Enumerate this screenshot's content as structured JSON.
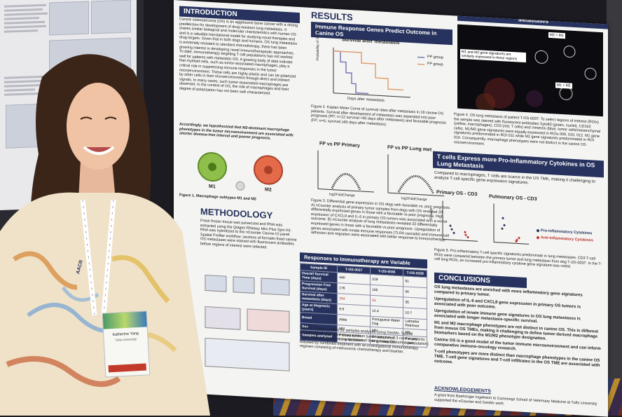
{
  "poster": {
    "intro_title": "INTRODUCTION",
    "intro_text": "Canine osteosarcoma (OS) is an aggressive bone cancer with a strong predilection for development of drug-resistant lung metastasis. It shares similar biological and molecular characteristics with human OS and is a valuable translational model for studying novel therapies and drug targets. Given that in both dogs and humans, OS lung metastasis is extremely resistant to standard chemotherapy, there has been growing interest in developing novel immunotherapeutic approaches. To date, immunotherapy targeting T cell populations has not worked well for patients with metastatic OS. A growing body of data indicate that myeloid cells, such as tumor-associated macrophages, play a critical role in suppressing immune responses in the tumor microenvironment. These cells are highly plastic and can be polarized by other cells in their microenvironment through direct and indirect signals. In many cases, such tumor-associated macrophages are observed. In the context of OS, the role of macrophages and their degree of polarization has not been well characterized.",
    "intro_hypothesis": "Accordingly, we hypothesized that M2-dominant macrophage phenotypes in the tumor microenvironment are associated with shorter disease-free interval and poorer prognosis.",
    "fig1_caption": "Figure 1. Macrophage subtypes M1 and M2",
    "fig1_m1": "M1",
    "fig1_m2": "M2",
    "methods_title": "METHODOLOGY",
    "methods_text": "Fresh frozen tissue was pulverized and RNA was extracted using the Qiagen RNeasy Mini Plus Spin Kit. RNA was hybridized to the nCounter Canine IO panel. Spatial Profiler workflow: sections of formalin-fixed canine OS metastases were stained with fluorescent antibodies before regions of interest were selected.",
    "results_title": "RESULTS",
    "km_header": "Immune Response Genes Predict Outcome in Canine OS",
    "km_title": "Survival after metastasis",
    "km_ylabel": "Probability of Survival",
    "km_xlabel": "Days after metastasis",
    "km_legend": [
      "PP group",
      "FP group"
    ],
    "fig2_caption": "Figure 2. Kaplan Meier Curve of survival rates after metastasis in 18 canine OS patients. Survival after development of metastasis was separated into poor prognosis (PP; n=12 survival <60 days after metastasis) and favorable prognosis (FP; n=6, survival ≥60 days after metastasis).",
    "volcano1_title": "FP vs PP Primary",
    "volcano2_title": "FP vs PP Lung met",
    "volcano_xlabel": "log2FoldChange",
    "fig3_caption": "Figure 3. Differential gene expression in OS dogs with favorable vs. poor prognosis. A) nCounter analysis of primary tumor samples from dogs with OS revealed 20 differentially expressed genes in those with a favorable vs poor prognosis. High expression of CXCL8 and IL-6 in primary OS tumors was associated with a worse outcome. B) nCounter analysis of lung metastases revealed 33 differentially expressed genes in those with a favorable vs poor prognosis. Upregulation of genes associated with innate immune responses (TLR4 cascade) and immune cell adhesion and migration were associated with better response to immunotherapy.",
    "table_header": "Responses to Immunotherapy are Variable",
    "table_cols": [
      "Sample ID",
      "T-OS-0037",
      "T-OS-0036",
      "T-OS-0028"
    ],
    "table_rows": [
      [
        "Overall Survival Time (days)",
        "440",
        "219",
        "91"
      ],
      [
        "Progression Free Survival (days)",
        "176",
        "165",
        "56"
      ],
      [
        "Survival after metastasis (days)",
        "264",
        "54",
        "35"
      ],
      [
        "Age at diagnosis (years)",
        "9.9",
        "12.4",
        "10.7"
      ],
      [
        "Breed",
        "Akita",
        "Portuguese Water Dog",
        "Labrador Retriever"
      ],
      [
        "Sex",
        "MN",
        "MN",
        "MN"
      ],
      [
        "Samples analyzed",
        "Primary tumor, Lung metastasis",
        "Primary tumor, lung metastasis",
        "Primary tumor"
      ]
    ],
    "table_caption": "Table 1. Patient profiles for samples analyzed using GeoMx. Spatial transcriptomic data were obtained from tumor samples of 3 canine patients. These dogs all underwent amputation of their primary OS tumor (amputation) followed by combined treatment with an investigational immunotherapy regimen consisting of metronomic chemotherapy and losartan.",
    "fig4_header": "Metastases",
    "fig4_labels": [
      "M2 > M1",
      "M1 and M2 gene signatures are similarly expressed in these regions",
      "M1 > M2"
    ],
    "fig4_caption": "Figure 4. OS lung metastasis of patient T-OS-0037. To select regions of interest (ROIs) the sample was stained with fluorescent antibodies Syto83 (green, nuclei), CD163 (yellow, macrophages), CD3 (red, T cells) and Vimentin (blue, tumor cells/mesenchymal cells). M1/M2 gene signatures were equally expressed in ROIs 009, 010, 012. M1 gene signatures predominated in ROI 011 while M2 gene signatures predominated in ROI 016. Consequently, macrophage phenotypes were not distinct in the canine OS microenvironment.",
    "tcell_header": "T cells Express more Pro-Inflammatory Cytokines in OS Lung Metastasis",
    "tcell_text": "Compared to macrophages, T cells are scarce in the OS TME, making it challenging to analyze T-cell specific gene expression signatures.",
    "dot1_title": "Primary OS - CD3",
    "dot2_title": "Pulmonary OS - CD3",
    "dot_ylabel": "Counts",
    "dot_legend": [
      "Pro-inflammatory Cytokines",
      "Anti-inflammatory Cytokines"
    ],
    "fig5_caption": "Figure 5. Pro-inflammatory T-cell specific signatures predominate in lung metastases. CD3 T-cell ROIs were compared between the primary tumor and lung metastasis from dog T-OS-0037. In the T-cell lung ROIs, an increased pro-inflammatory cytokine gene signature was noted.",
    "conclusions_title": "CONCLUSIONS",
    "conclusions": [
      "OS lung metastases are enriched with more inflammatory gene signatures compared to primary tumor.",
      "Upregulation of IL-6 and CXCL8 gene expression in primary OS tumors is associated with poor outcome.",
      "Upregulation of innate immune gene signatures in OS lung metastases is associated with longer metastasis-specific survival.",
      "M1 and M2 macrophage phenotypes are not distinct in canine OS. This is different from mouse OS TMEs, making it challenging to define tumor-derived macrophage biomarkers based on the M1/M2 phenotype designation.",
      "Canine OS is a good model of the tumor immune microenvironment and can inform comparative immuno-oncology research.",
      "T-cell phenotypes are more distinct than macrophage phenotypes in the canine OS TME. T-cell gene signatures and T-cell infiltrates in the OS TME are associated with outcome."
    ],
    "ack_title": "ACKNOWLEDGEMENTS",
    "ack_text": "A grant from Boehringer Ingelheim to Cummings School of Veterinary Medicine at Tufts University supported the nCounter and GeoMx work."
  },
  "badge": {
    "name": "Katherine Yang",
    "org": "Tufts University",
    "lanyard": "AACR"
  },
  "colors": {
    "accent": "#27335e",
    "pp": "#7a7ab5",
    "fp": "#e0a070",
    "pro": "#27335e",
    "anti": "#c0302a"
  }
}
